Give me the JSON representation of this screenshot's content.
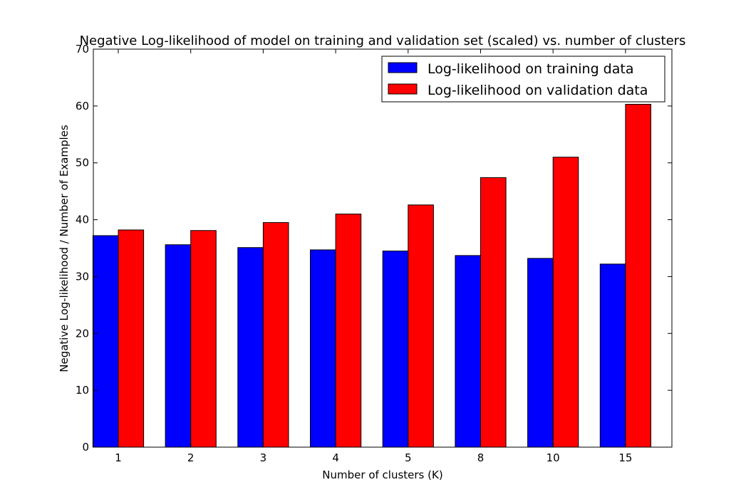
{
  "chart_data": {
    "type": "bar",
    "title": "Negative Log-likelihood of model on training and validation set (scaled) vs. number of clusters",
    "xlabel": "Number of clusters (K)",
    "ylabel": "Negative Log-likelihood / Number of Examples",
    "ylim": [
      0,
      70
    ],
    "yticks": [
      0,
      10,
      20,
      30,
      40,
      50,
      60,
      70
    ],
    "categories": [
      "1",
      "2",
      "3",
      "4",
      "5",
      "8",
      "10",
      "15"
    ],
    "series": [
      {
        "name": "Log-likelihood on training data",
        "color": "#0000ff",
        "values": [
          37.2,
          35.6,
          35.1,
          34.7,
          34.5,
          33.7,
          33.2,
          32.2
        ]
      },
      {
        "name": "Log-likelihood on validation data",
        "color": "#ff0000",
        "values": [
          38.2,
          38.1,
          39.5,
          41.0,
          42.6,
          47.4,
          51.0,
          60.3
        ]
      }
    ],
    "legend": "top-right",
    "grid": false
  }
}
